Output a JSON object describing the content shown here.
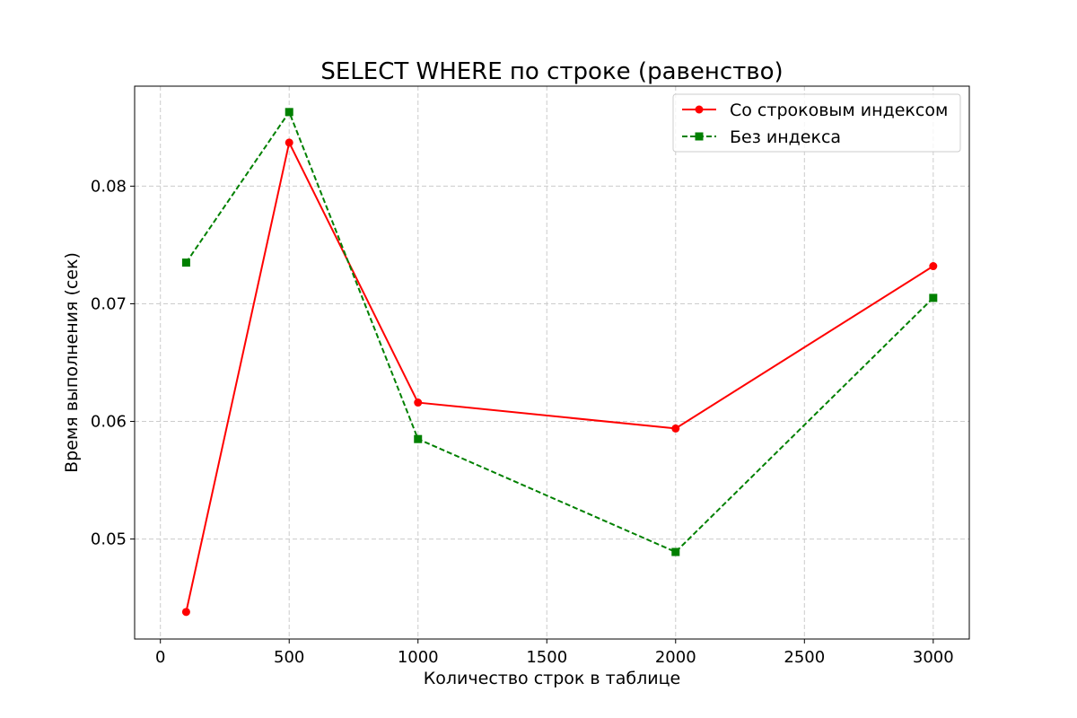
{
  "chart_data": {
    "type": "line",
    "title": "SELECT WHERE по строке (равенство)",
    "xlabel": "Количество строк в таблице",
    "ylabel": "Время выполнения (сек)",
    "xlim": [
      -100,
      3140
    ],
    "ylim": [
      0.0415,
      0.0885
    ],
    "x_ticks": [
      0,
      500,
      1000,
      1500,
      2000,
      2500,
      3000
    ],
    "x_tick_labels": [
      "0",
      "500",
      "1000",
      "1500",
      "2000",
      "2500",
      "3000"
    ],
    "y_ticks": [
      0.05,
      0.06,
      0.07,
      0.08
    ],
    "y_tick_labels": [
      "0.05",
      "0.06",
      "0.07",
      "0.08"
    ],
    "grid": true,
    "legend_position": "top-right",
    "x": [
      100,
      500,
      1000,
      2000,
      3000
    ],
    "series": [
      {
        "name": "Со строковым индексом",
        "values": [
          0.0438,
          0.0837,
          0.0616,
          0.0594,
          0.0732
        ],
        "color": "#ff0000",
        "line_style": "solid",
        "marker": "circle"
      },
      {
        "name": "Без индекса",
        "values": [
          0.0735,
          0.0863,
          0.0585,
          0.0489,
          0.0705
        ],
        "color": "#008000",
        "line_style": "dashed",
        "marker": "square"
      }
    ]
  }
}
